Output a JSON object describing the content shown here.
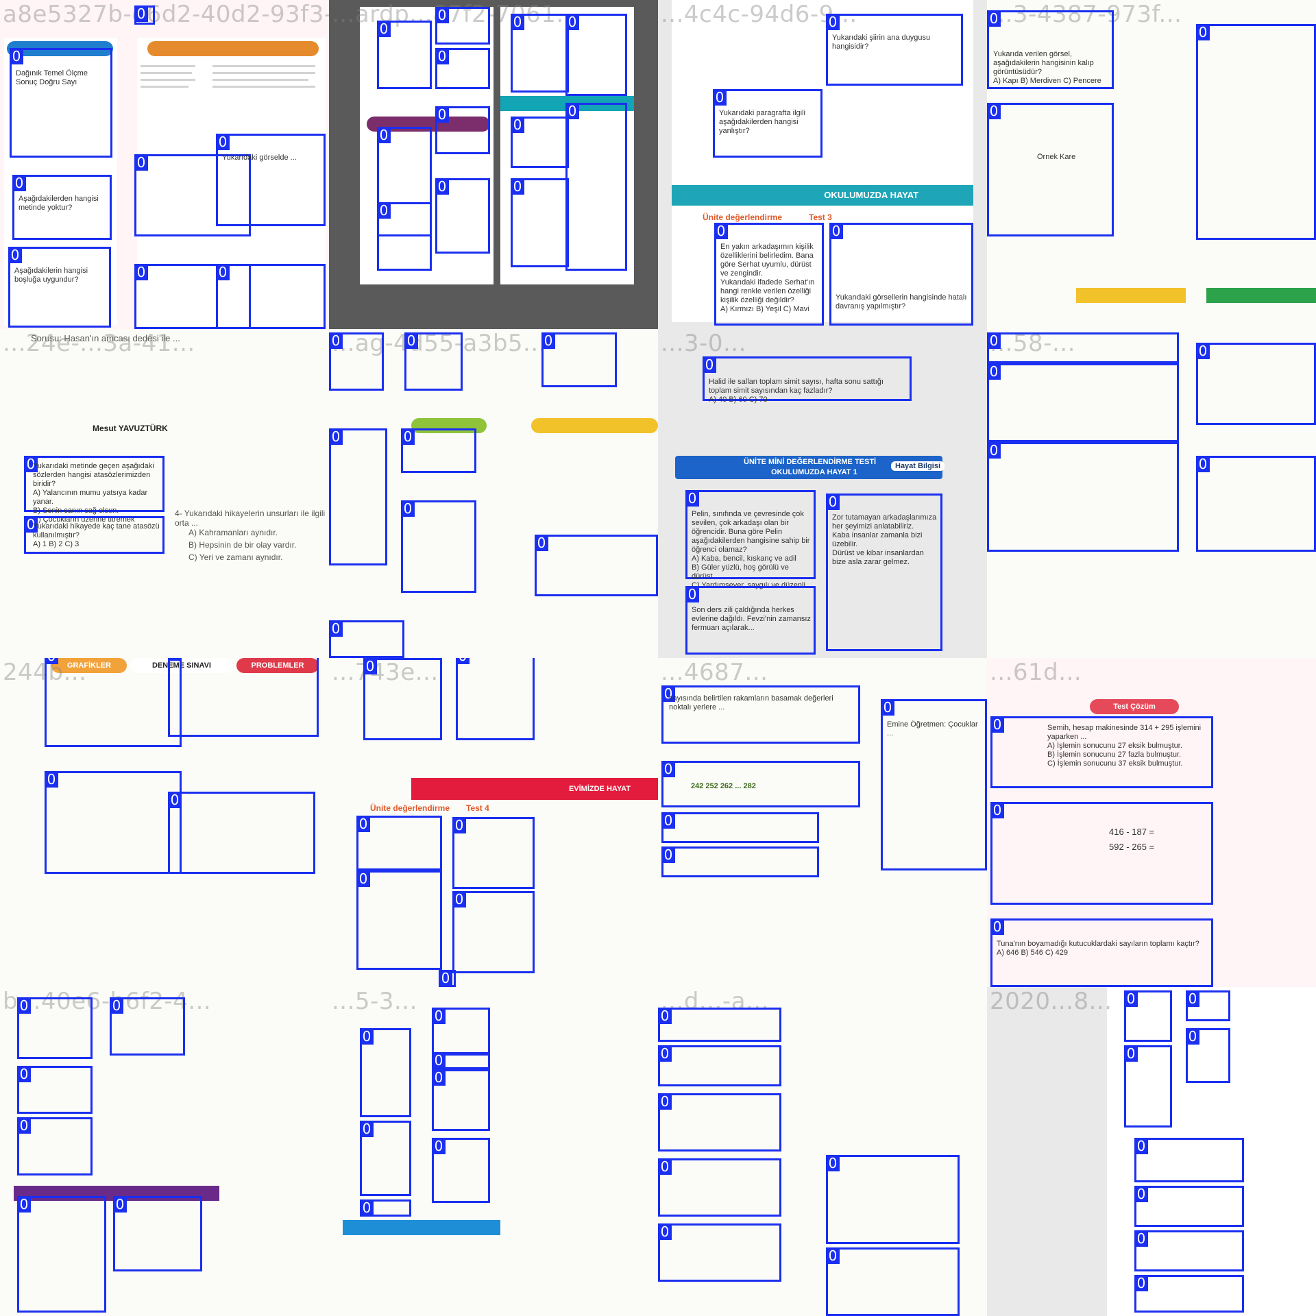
{
  "colors": {
    "box": "#1a2ff0",
    "box_label_bg": "#1a2ff0",
    "box_label_text": "#ffffff"
  },
  "tiles": [
    {
      "id": "a8e5327b-e6d2-40d2-93f3-83469146...",
      "bg": "pink",
      "boxes": [
        {
          "label": "0",
          "text": "Dağınık  Temel  Ölçme\nSonuç  Doğru  Sayı"
        },
        {
          "label": "0",
          "text": "Aşağıdakilerden hangisi metinde yoktur?"
        },
        {
          "label": "0",
          "text": "Aşağıdakilerin hangisi boşluğa uygundur?"
        },
        {
          "label": "0",
          "text": ""
        },
        {
          "label": "0",
          "text": ""
        },
        {
          "label": "0",
          "text": "Yukarıdaki görselde ..."
        },
        {
          "label": "0",
          "text": ""
        },
        {
          "label": "0",
          "text": ""
        }
      ]
    },
    {
      "id": "...ardp...87f2-7061...",
      "bg": "dark",
      "boxes": [
        {
          "label": "0",
          "text": ""
        },
        {
          "label": "0",
          "text": ""
        },
        {
          "label": "0",
          "text": ""
        },
        {
          "label": "0",
          "text": ""
        },
        {
          "label": "0",
          "text": ""
        },
        {
          "label": "0",
          "text": ""
        },
        {
          "label": "0",
          "text": ""
        },
        {
          "label": "0",
          "text": ""
        },
        {
          "label": "0",
          "text": ""
        },
        {
          "label": "0",
          "text": ""
        },
        {
          "label": "0",
          "text": ""
        },
        {
          "label": "0",
          "text": ""
        }
      ]
    },
    {
      "id": "...4c4c-94d6-9...",
      "bg": "gray",
      "header": "OKULUMUZDA HAYAT",
      "section": "Ünite değerlendirme",
      "test": "Test 3",
      "boxes": [
        {
          "label": "0",
          "text": "Yukarıdaki şiirin ana duygusu hangisidir?"
        },
        {
          "label": "0",
          "text": "Yukarıdaki paragrafta ilgili aşağıdakilerden hangisi yanlıştır?"
        },
        {
          "label": "0",
          "text": "En yakın arkadaşımın kişilik özelliklerini belirledim. Bana göre Serhat uyumlu, dürüst ve zengindir.\nYukarıdaki ifadede Serhat'ın hangi renkle verilen özelliği kişilik özelliği değildir?\nA) Kırmızı   B) Yeşil   C) Mavi"
        },
        {
          "label": "0",
          "text": "Yukarıdaki görsellerin hangisinde hatalı davranış yapılmıştır?"
        }
      ]
    },
    {
      "id": "...3-4387-973f...",
      "bg": "white",
      "boxes": [
        {
          "label": "0",
          "text": "Yukarıda verilen görsel, aşağıdakilerin hangisinin kalıp görüntüsüdür?\nA) Kapı   B) Merdiven   C) Pencere"
        },
        {
          "label": "0",
          "text": "Örnek Kare"
        },
        {
          "label": "0",
          "text": ""
        }
      ]
    },
    {
      "id": "...24e-...3a-41...",
      "bg": "white",
      "boxes": [
        {
          "label": "0",
          "text": "Yukarıdaki metinde geçen aşağıdaki sözlerden hangisi atasözlerimizden biridir?\nA) Yalancının mumu yatsıya kadar yanar.\nB) Senin canın sağ olsun.\nC) Çocukların üzerine titremek"
        },
        {
          "label": "0",
          "text": "Yukarıdaki hikayede kaç tane atasözü kullanılmıştır?\nA) 1   B) 2   C) 3"
        }
      ],
      "body_lines": [
        "Sorusu: Hasan'ın amcası dedesi ile ...",
        "Mesut YAVUZTÜRK",
        "4- Yukarıdaki hikayelerin unsurları ile ilgili orta ...",
        "A) Kahramanları aynıdır.",
        "B) Hepsinin de bir olay vardır.",
        "C) Yeri ve zamanı aynıdır."
      ]
    },
    {
      "id": "...ag-4d55-a3b5...",
      "bg": "white",
      "boxes": [
        {
          "label": "0",
          "text": ""
        },
        {
          "label": "0",
          "text": ""
        },
        {
          "label": "0",
          "text": ""
        },
        {
          "label": "0",
          "text": ""
        },
        {
          "label": "0",
          "text": ""
        },
        {
          "label": "0",
          "text": ""
        },
        {
          "label": "0",
          "text": ""
        },
        {
          "label": "0",
          "text": ""
        }
      ]
    },
    {
      "id": "...3-0...",
      "bg": "gray",
      "title": "ÜNİTE MİNİ DEĞERLENDİRME TESTİ",
      "subtitle": "OKULUMUZDA HAYAT 1",
      "subject": "Hayat Bilgisi",
      "boxes": [
        {
          "label": "0",
          "text": "Halid ile sallan toplam simit sayısı, hafta sonu sattığı toplam simit sayısından kaç fazladır?\nA) 40   B) 60   C) 70"
        },
        {
          "label": "0",
          "text": "Pelin, sınıfında ve çevresinde çok sevilen, çok arkadaşı olan bir öğrencidir. Buna göre Pelin aşağıdakilerden hangisine sahip bir öğrenci olamaz?\nA) Kaba, bencil, kıskanç ve adil\nB) Güler yüzlü, hoş görülü ve dürüst\nC) Yardımsever, saygılı ve düzenli"
        },
        {
          "label": "0",
          "text": "Zor tutamayan arkadaşlarımıza her şeyimizi anlatabiliriz.\nKaba insanlar zamanla bizi üzebilir.\nDürüst ve kibar insanlardan bize asla zarar gelmez."
        },
        {
          "label": "0",
          "text": "Son ders zili çaldığında herkes evlerine dağıldı. Fevzi'nin zamansız fermuarı açılarak..."
        }
      ]
    },
    {
      "id": "...58-...",
      "bg": "white",
      "boxes": [
        {
          "label": "0",
          "text": ""
        },
        {
          "label": "0",
          "text": ""
        },
        {
          "label": "0",
          "text": ""
        },
        {
          "label": "0",
          "text": ""
        },
        {
          "label": "0",
          "text": ""
        }
      ]
    },
    {
      "id": "244b...",
      "bg": "white",
      "band_labels": [
        "GRAFİKLER",
        "DENEME SINAVI",
        "PROBLEMLER"
      ],
      "boxes": [
        {
          "label": "0",
          "text": ""
        },
        {
          "label": "0",
          "text": ""
        },
        {
          "label": "0",
          "text": ""
        },
        {
          "label": "0",
          "text": ""
        }
      ]
    },
    {
      "id": "...743e...",
      "bg": "white",
      "header": "EVİMİZDE HAYAT",
      "section": "Ünite değerlendirme",
      "test": "Test 4",
      "boxes": [
        {
          "label": "0",
          "text": ""
        },
        {
          "label": "0",
          "text": ""
        },
        {
          "label": "0",
          "text": ""
        },
        {
          "label": "0",
          "text": ""
        },
        {
          "label": "0",
          "text": ""
        },
        {
          "label": "0",
          "text": ""
        },
        {
          "label": "0",
          "text": ""
        }
      ]
    },
    {
      "id": "...4687...",
      "bg": "white",
      "boxes": [
        {
          "label": "0",
          "text": "sayısında belirtilen rakamların basamak değerleri noktalı yerlere ..."
        },
        {
          "label": "0",
          "text": "242  252  262  ...  282"
        },
        {
          "label": "0",
          "text": ""
        },
        {
          "label": "0",
          "text": ""
        },
        {
          "label": "0",
          "text": "Emine Öğretmen: Çocuklar ..."
        }
      ]
    },
    {
      "id": "...61d...",
      "bg": "pink",
      "badge": "Test Çözüm",
      "boxes": [
        {
          "label": "0",
          "text": "Semih, hesap makinesinde 314 + 295 işlemini yaparken ...\nA) İşlemin sonucunu 27 eksik bulmuştur.\nB) İşlemin sonucunu 27 fazla bulmuştur.\nC) İşlemin sonucunu 37 eksik bulmuştur."
        },
        {
          "label": "0",
          "text": "416 - 187 =\n592 - 265 ="
        },
        {
          "label": "0",
          "text": "Tuna'nın boyamadığı kutucuklardaki sayıların toplamı kaçtır?\nA) 646   B) 546   C) 429"
        }
      ]
    },
    {
      "id": "b...40e6-b6f2-4...",
      "bg": "white",
      "boxes": [
        {
          "label": "0",
          "text": ""
        },
        {
          "label": "0",
          "text": ""
        },
        {
          "label": "0",
          "text": ""
        },
        {
          "label": "0",
          "text": ""
        },
        {
          "label": "0",
          "text": ""
        },
        {
          "label": "0",
          "text": ""
        }
      ]
    },
    {
      "id": "...5-3...",
      "bg": "white",
      "boxes": [
        {
          "label": "0",
          "text": ""
        },
        {
          "label": "0",
          "text": ""
        },
        {
          "label": "0",
          "text": ""
        },
        {
          "label": "0",
          "text": ""
        },
        {
          "label": "0",
          "text": ""
        },
        {
          "label": "0",
          "text": ""
        },
        {
          "label": "0",
          "text": ""
        }
      ]
    },
    {
      "id": "...d...-a...",
      "bg": "white",
      "boxes": [
        {
          "label": "0",
          "text": ""
        },
        {
          "label": "0",
          "text": ""
        },
        {
          "label": "0",
          "text": ""
        },
        {
          "label": "0",
          "text": ""
        },
        {
          "label": "0",
          "text": ""
        },
        {
          "label": "0",
          "text": ""
        },
        {
          "label": "0",
          "text": ""
        }
      ]
    },
    {
      "id": "2020...8...",
      "bg": "gray",
      "boxes": [
        {
          "label": "0",
          "text": ""
        },
        {
          "label": "0",
          "text": ""
        },
        {
          "label": "0",
          "text": ""
        },
        {
          "label": "0",
          "text": ""
        },
        {
          "label": "0",
          "text": ""
        },
        {
          "label": "0",
          "text": ""
        },
        {
          "label": "0",
          "text": ""
        },
        {
          "label": "0",
          "text": ""
        }
      ]
    }
  ]
}
